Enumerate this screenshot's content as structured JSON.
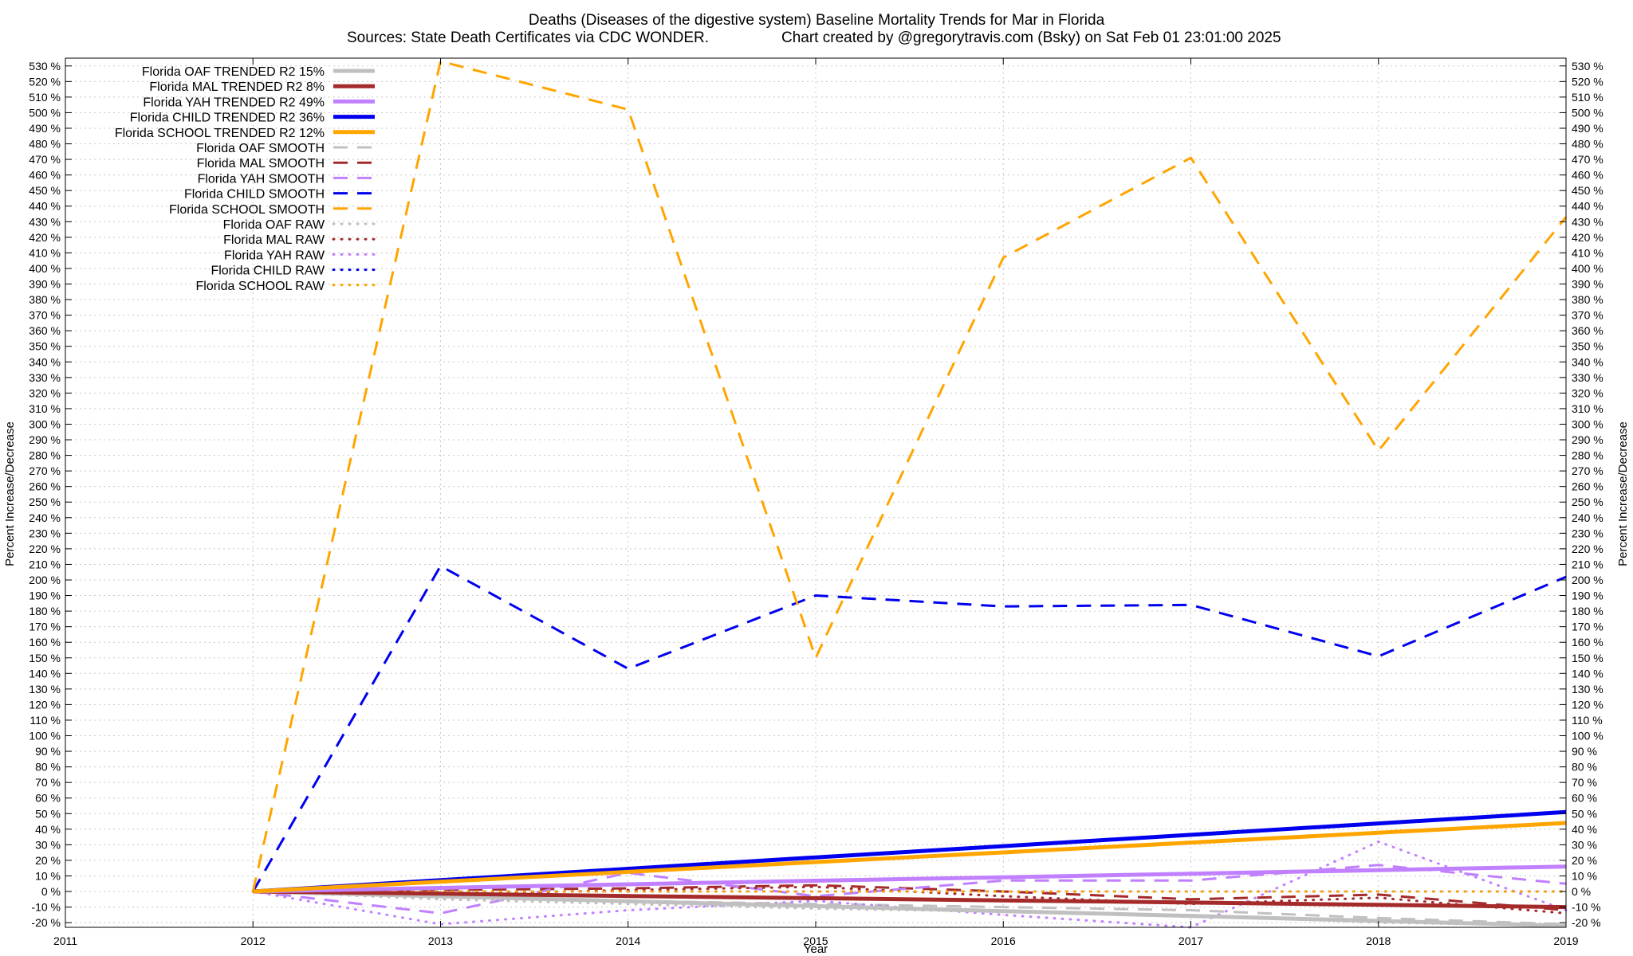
{
  "chart_data": {
    "type": "line",
    "title": "Deaths (Diseases of the digestive system)  Baseline Mortality Trends for Mar in Florida",
    "subtitle_left": "Sources: State Death Certificates via CDC WONDER.",
    "subtitle_right": "Chart created by @gregorytravis.com (Bsky) on Sat Feb 01 23:01:00 2025",
    "xlabel": "Year",
    "ylabel": "Percent Increase/Decrease",
    "ylabel_right": "Percent Increase/Decrease",
    "xlim": [
      2011,
      2019
    ],
    "ylim": [
      -23,
      535
    ],
    "x_ticks": [
      "2011",
      "2012",
      "2013",
      "2014",
      "2015",
      "2016",
      "2017",
      "2018",
      "2019"
    ],
    "y_ticks": [
      -20,
      -10,
      0,
      10,
      20,
      30,
      40,
      50,
      60,
      70,
      80,
      90,
      100,
      110,
      120,
      130,
      140,
      150,
      160,
      170,
      180,
      190,
      200,
      210,
      220,
      230,
      240,
      250,
      260,
      270,
      280,
      290,
      300,
      310,
      320,
      330,
      340,
      350,
      360,
      370,
      380,
      390,
      400,
      410,
      420,
      430,
      440,
      450,
      460,
      470,
      480,
      490,
      500,
      510,
      520,
      530
    ],
    "y_tick_suffix": " %",
    "grid": true,
    "legend_position": "top-left",
    "x": [
      2012,
      2013,
      2014,
      2015,
      2016,
      2017,
      2018,
      2019
    ],
    "series": [
      {
        "name": "Florida OAF TRENDED R2  15%",
        "color": "#c0c0c0",
        "style": "solid",
        "width": 5,
        "values": [
          0,
          -3.1,
          -6.3,
          -9.4,
          -12.6,
          -15.7,
          -18.9,
          -22
        ]
      },
      {
        "name": "Florida MAL TRENDED R2  8%",
        "color": "#a52a2a",
        "style": "solid",
        "width": 5,
        "values": [
          0,
          -1.4,
          -2.9,
          -4.3,
          -5.7,
          -7.1,
          -8.6,
          -10
        ]
      },
      {
        "name": "Florida YAH TRENDED R2  49%",
        "color": "#c080ff",
        "style": "solid",
        "width": 5,
        "values": [
          0,
          2.3,
          4.6,
          6.9,
          9.1,
          11.4,
          13.7,
          16
        ]
      },
      {
        "name": "Florida CHILD TRENDED R2  36%",
        "color": "#0000ee",
        "style": "solid",
        "width": 5,
        "values": [
          0,
          7.3,
          14.6,
          21.9,
          29.1,
          36.4,
          43.7,
          51
        ]
      },
      {
        "name": "Florida SCHOOL TRENDED R2  12%",
        "color": "#ffa500",
        "style": "solid",
        "width": 5,
        "values": [
          0,
          6.3,
          12.6,
          18.9,
          25.1,
          31.4,
          37.7,
          44
        ]
      },
      {
        "name": "Florida OAF SMOOTH",
        "color": "#c0c0c0",
        "style": "dash",
        "width": 3,
        "values": [
          0,
          -3,
          -6,
          -8,
          -10,
          -12,
          -17,
          -21
        ]
      },
      {
        "name": "Florida MAL SMOOTH",
        "color": "#a52a2a",
        "style": "dash",
        "width": 3,
        "values": [
          0,
          1,
          2,
          4,
          0,
          -5,
          -2,
          -12
        ]
      },
      {
        "name": "Florida YAH SMOOTH",
        "color": "#c080ff",
        "style": "dash",
        "width": 3,
        "values": [
          0,
          -14,
          12,
          -3,
          7,
          7,
          17,
          5
        ]
      },
      {
        "name": "Florida CHILD SMOOTH",
        "color": "#0000ee",
        "style": "dash",
        "width": 3,
        "values": [
          0,
          209,
          143,
          190,
          183,
          184,
          151,
          202
        ]
      },
      {
        "name": "Florida SCHOOL SMOOTH",
        "color": "#ffa500",
        "style": "dash",
        "width": 3,
        "values": [
          0,
          533,
          502,
          150,
          407,
          471,
          283,
          433
        ]
      },
      {
        "name": "Florida OAF RAW",
        "color": "#c0c0c0",
        "style": "dot",
        "width": 3,
        "values": [
          0,
          -5,
          -8,
          -11,
          -13,
          -15,
          -20,
          -22
        ]
      },
      {
        "name": "Florida MAL RAW",
        "color": "#a52a2a",
        "style": "dot",
        "width": 3,
        "values": [
          0,
          -2,
          1,
          3,
          -3,
          -8,
          -4,
          -14
        ]
      },
      {
        "name": "Florida YAH RAW",
        "color": "#c080ff",
        "style": "dot",
        "width": 3,
        "values": [
          0,
          -21,
          -12,
          -6,
          -15,
          -23,
          32,
          -12
        ]
      },
      {
        "name": "Florida CHILD RAW",
        "color": "#0000ee",
        "style": "dot",
        "width": 3,
        "values": [
          0,
          0,
          0,
          0,
          0,
          0,
          0,
          0
        ]
      },
      {
        "name": "Florida SCHOOL RAW",
        "color": "#ffa500",
        "style": "dot",
        "width": 3,
        "values": [
          0,
          0,
          0,
          0,
          0,
          0,
          0,
          0
        ]
      }
    ]
  }
}
